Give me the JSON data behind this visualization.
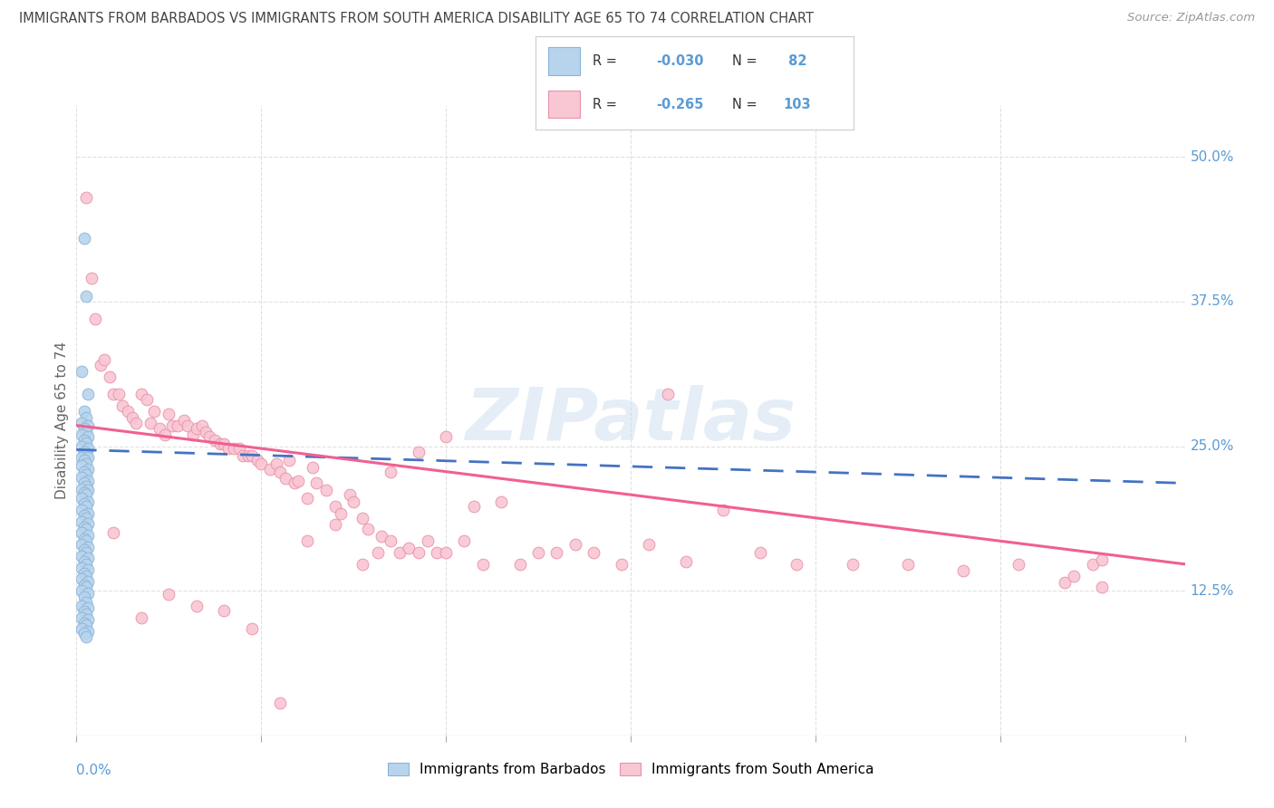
{
  "title": "IMMIGRANTS FROM BARBADOS VS IMMIGRANTS FROM SOUTH AMERICA DISABILITY AGE 65 TO 74 CORRELATION CHART",
  "source": "Source: ZipAtlas.com",
  "ylabel": "Disability Age 65 to 74",
  "ylabel_right_ticks": [
    "12.5%",
    "25.0%",
    "37.5%",
    "50.0%"
  ],
  "ylabel_right_vals": [
    0.125,
    0.25,
    0.375,
    0.5
  ],
  "xlim": [
    0.0,
    0.6
  ],
  "ylim": [
    0.0,
    0.545
  ],
  "watermark": "ZIPatlas",
  "barbados_color": "#b8d4ed",
  "barbados_edge": "#8ab4d8",
  "sa_color": "#f9c6d3",
  "sa_edge": "#e891a8",
  "blue_line_color": "#4472c4",
  "pink_line_color": "#f06090",
  "grid_color": "#e0e0e0",
  "title_color": "#444444",
  "right_tick_color": "#5b9bd5",
  "legend_r1_label": "R = ",
  "legend_r1_val": "-0.030",
  "legend_n1_label": "N = ",
  "legend_n1_val": " 82",
  "legend_r2_label": "R = ",
  "legend_r2_val": "-0.265",
  "legend_n2_label": "N = ",
  "legend_n2_val": "103",
  "barb_x": [
    0.004,
    0.005,
    0.003,
    0.006,
    0.004,
    0.005,
    0.003,
    0.006,
    0.004,
    0.005,
    0.003,
    0.006,
    0.004,
    0.005,
    0.003,
    0.006,
    0.004,
    0.005,
    0.003,
    0.006,
    0.004,
    0.005,
    0.003,
    0.006,
    0.004,
    0.005,
    0.003,
    0.006,
    0.004,
    0.005,
    0.003,
    0.006,
    0.004,
    0.005,
    0.003,
    0.006,
    0.004,
    0.005,
    0.003,
    0.006,
    0.004,
    0.005,
    0.003,
    0.006,
    0.004,
    0.005,
    0.003,
    0.006,
    0.004,
    0.005,
    0.003,
    0.006,
    0.004,
    0.005,
    0.003,
    0.006,
    0.004,
    0.005,
    0.003,
    0.006,
    0.004,
    0.005,
    0.003,
    0.006,
    0.004,
    0.005,
    0.003,
    0.006,
    0.004,
    0.005,
    0.003,
    0.006,
    0.004,
    0.005,
    0.003,
    0.006,
    0.004,
    0.005,
    0.003,
    0.006,
    0.004,
    0.005
  ],
  "barb_y": [
    0.43,
    0.38,
    0.315,
    0.295,
    0.28,
    0.275,
    0.27,
    0.268,
    0.265,
    0.262,
    0.26,
    0.258,
    0.255,
    0.253,
    0.25,
    0.248,
    0.245,
    0.243,
    0.24,
    0.24,
    0.238,
    0.235,
    0.233,
    0.23,
    0.228,
    0.225,
    0.223,
    0.22,
    0.218,
    0.215,
    0.213,
    0.212,
    0.21,
    0.208,
    0.205,
    0.202,
    0.2,
    0.198,
    0.195,
    0.192,
    0.19,
    0.188,
    0.185,
    0.183,
    0.18,
    0.178,
    0.175,
    0.173,
    0.17,
    0.168,
    0.165,
    0.163,
    0.16,
    0.158,
    0.155,
    0.153,
    0.15,
    0.148,
    0.145,
    0.143,
    0.14,
    0.138,
    0.135,
    0.133,
    0.13,
    0.128,
    0.125,
    0.123,
    0.12,
    0.115,
    0.112,
    0.11,
    0.107,
    0.105,
    0.102,
    0.1,
    0.097,
    0.095,
    0.092,
    0.09,
    0.088,
    0.085
  ],
  "sa_x": [
    0.005,
    0.008,
    0.01,
    0.013,
    0.015,
    0.018,
    0.02,
    0.023,
    0.025,
    0.028,
    0.03,
    0.032,
    0.035,
    0.038,
    0.04,
    0.042,
    0.045,
    0.048,
    0.05,
    0.052,
    0.055,
    0.058,
    0.06,
    0.063,
    0.065,
    0.068,
    0.07,
    0.072,
    0.075,
    0.078,
    0.08,
    0.082,
    0.085,
    0.088,
    0.09,
    0.093,
    0.095,
    0.098,
    0.1,
    0.105,
    0.108,
    0.11,
    0.113,
    0.115,
    0.118,
    0.12,
    0.125,
    0.128,
    0.13,
    0.135,
    0.14,
    0.143,
    0.148,
    0.15,
    0.155,
    0.158,
    0.163,
    0.165,
    0.17,
    0.175,
    0.18,
    0.185,
    0.19,
    0.195,
    0.2,
    0.21,
    0.215,
    0.22,
    0.23,
    0.24,
    0.25,
    0.26,
    0.27,
    0.28,
    0.295,
    0.31,
    0.33,
    0.35,
    0.37,
    0.39,
    0.42,
    0.45,
    0.48,
    0.51,
    0.535,
    0.555,
    0.02,
    0.035,
    0.05,
    0.065,
    0.08,
    0.095,
    0.11,
    0.125,
    0.14,
    0.155,
    0.17,
    0.185,
    0.2,
    0.32,
    0.55,
    0.54,
    0.555
  ],
  "sa_y": [
    0.465,
    0.395,
    0.36,
    0.32,
    0.325,
    0.31,
    0.295,
    0.295,
    0.285,
    0.28,
    0.275,
    0.27,
    0.295,
    0.29,
    0.27,
    0.28,
    0.265,
    0.26,
    0.278,
    0.268,
    0.268,
    0.272,
    0.268,
    0.26,
    0.265,
    0.268,
    0.262,
    0.258,
    0.255,
    0.252,
    0.252,
    0.248,
    0.248,
    0.248,
    0.242,
    0.242,
    0.242,
    0.238,
    0.235,
    0.23,
    0.235,
    0.228,
    0.222,
    0.238,
    0.218,
    0.22,
    0.205,
    0.232,
    0.218,
    0.212,
    0.198,
    0.192,
    0.208,
    0.202,
    0.188,
    0.178,
    0.158,
    0.172,
    0.168,
    0.158,
    0.162,
    0.158,
    0.168,
    0.158,
    0.158,
    0.168,
    0.198,
    0.148,
    0.202,
    0.148,
    0.158,
    0.158,
    0.165,
    0.158,
    0.148,
    0.165,
    0.15,
    0.195,
    0.158,
    0.148,
    0.148,
    0.148,
    0.142,
    0.148,
    0.132,
    0.128,
    0.175,
    0.102,
    0.122,
    0.112,
    0.108,
    0.092,
    0.028,
    0.168,
    0.182,
    0.148,
    0.228,
    0.245,
    0.258,
    0.295,
    0.148,
    0.138,
    0.152
  ]
}
